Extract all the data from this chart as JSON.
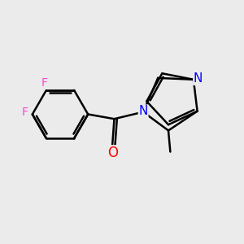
{
  "bg_color": "#ebebeb",
  "bond_color": "#000000",
  "bond_width": 1.8,
  "F_color": "#ff44cc",
  "N_color": "#0000ff",
  "O_color": "#ff0000",
  "C_color": "#000000",
  "figsize": [
    3.0,
    3.0
  ],
  "dpi": 100,
  "xlim": [
    -3.2,
    3.0
  ],
  "ylim": [
    -2.2,
    2.2
  ],
  "dbo": 0.07
}
